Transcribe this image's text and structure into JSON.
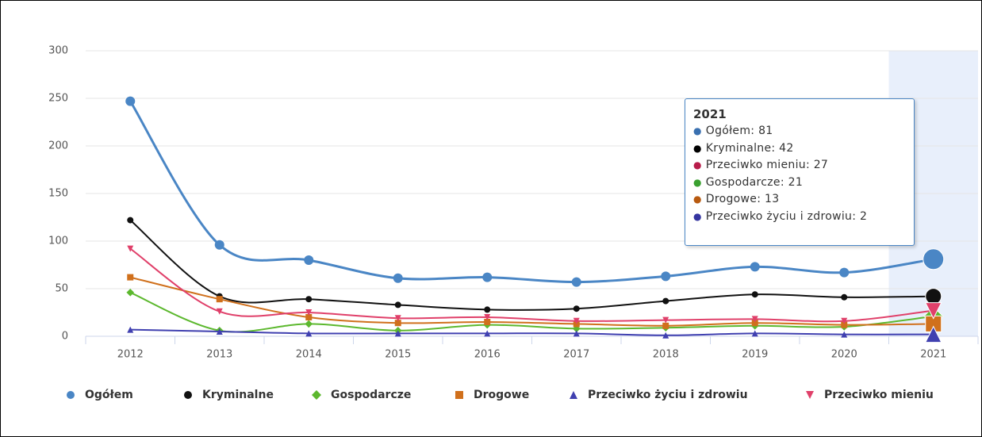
{
  "chart_data": {
    "type": "line",
    "categories": [
      "2012",
      "2013",
      "2014",
      "2015",
      "2016",
      "2017",
      "2018",
      "2019",
      "2020",
      "2021"
    ],
    "ylim": [
      0,
      300
    ],
    "yticks": [
      0,
      50,
      100,
      150,
      200,
      250,
      300
    ],
    "grid": true,
    "smooth": true,
    "legend": "bottom",
    "series": [
      {
        "name": "Ogółem",
        "color": "#4a86c5",
        "marker": "circle",
        "values": [
          247,
          96,
          80,
          61,
          62,
          57,
          63,
          73,
          67,
          81
        ]
      },
      {
        "name": "Kryminalne",
        "color": "#111111",
        "marker": "circle",
        "values": [
          122,
          42,
          39,
          33,
          28,
          29,
          37,
          44,
          41,
          42
        ]
      },
      {
        "name": "Gospodarcze",
        "color": "#5cb82e",
        "marker": "diamond",
        "values": [
          46,
          6,
          13,
          6,
          12,
          8,
          9,
          11,
          10,
          21
        ]
      },
      {
        "name": "Drogowe",
        "color": "#d0701c",
        "marker": "square",
        "values": [
          62,
          39,
          20,
          14,
          15,
          13,
          11,
          14,
          12,
          13
        ]
      },
      {
        "name": "Przeciwko życiu i zdrowiu",
        "color": "#4040b0",
        "marker": "triangle",
        "values": [
          7,
          5,
          3,
          3,
          3,
          3,
          1,
          3,
          2,
          2
        ]
      },
      {
        "name": "Przeciwko mieniu",
        "color": "#e0406a",
        "marker": "triangle-down",
        "values": [
          92,
          26,
          25,
          19,
          20,
          16,
          17,
          18,
          16,
          27
        ]
      }
    ],
    "tooltip": {
      "title": "2021",
      "items": [
        {
          "name": "Ogółem",
          "value": 81,
          "color": "#3a70b0"
        },
        {
          "name": "Kryminalne",
          "value": 42,
          "color": "#000000"
        },
        {
          "name": "Przeciwko mieniu",
          "value": 27,
          "color": "#b81c4a"
        },
        {
          "name": "Gospodarcze",
          "value": 21,
          "color": "#3aa030"
        },
        {
          "name": "Drogowe",
          "value": 13,
          "color": "#b85a10"
        },
        {
          "name": "Przeciwko życiu i zdrowiu",
          "value": 2,
          "color": "#3535a0"
        }
      ]
    }
  }
}
